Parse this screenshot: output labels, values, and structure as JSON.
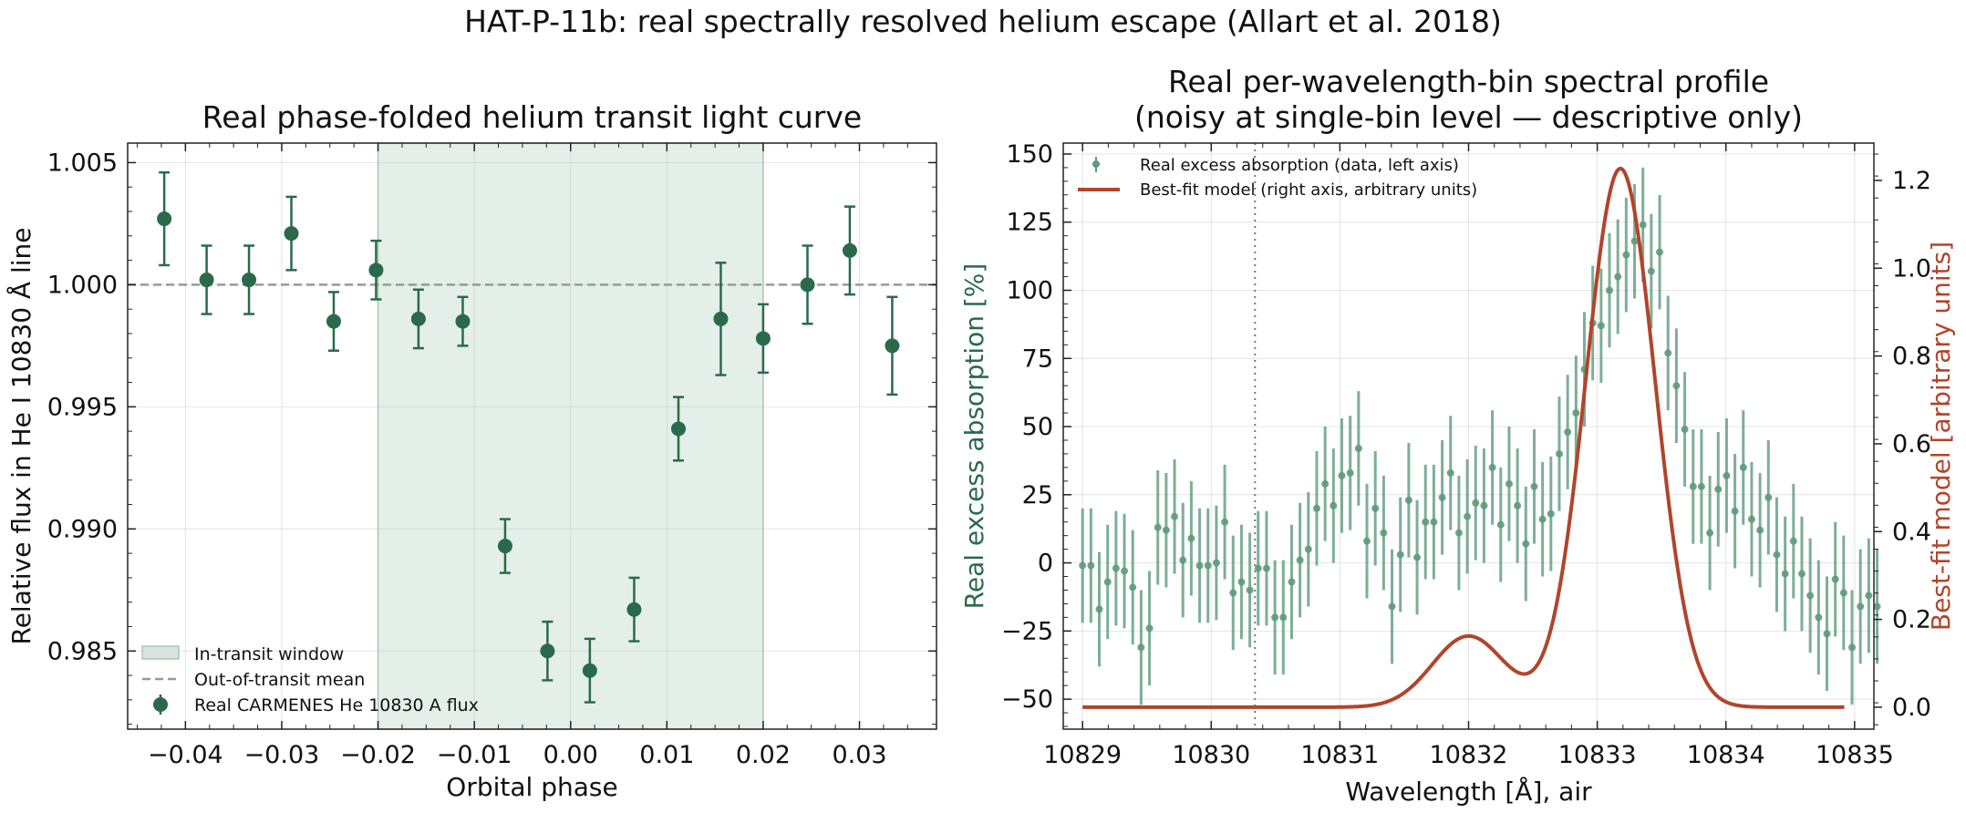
{
  "figure": {
    "suptitle": "HAT-P-11b: real spectrally resolved helium escape (Allart et al. 2018)"
  },
  "chart_data": [
    {
      "type": "scatter",
      "title": "Real phase-folded helium transit light curve",
      "xlabel": "Orbital phase",
      "ylabel": "Relative flux in He I 10830 Å line",
      "xlim": [
        -0.046,
        0.038
      ],
      "ylim": [
        0.9818,
        1.0058
      ],
      "xticks": [
        -0.04,
        -0.03,
        -0.02,
        -0.01,
        0.0,
        0.01,
        0.02,
        0.03
      ],
      "xtick_labels": [
        "−0.04",
        "−0.03",
        "−0.02",
        "−0.01",
        "0.00",
        "0.01",
        "0.02",
        "0.03"
      ],
      "yticks": [
        0.985,
        0.99,
        0.995,
        1.0,
        1.005
      ],
      "ytick_labels": [
        "0.985",
        "0.990",
        "0.995",
        "1.000",
        "1.005"
      ],
      "grid": true,
      "legend_placement": "lower-left",
      "colors": {
        "data": "#2a6a4a",
        "mean": "#999999",
        "window": "#d6e6dd"
      },
      "in_transit_window": {
        "label": "In-transit window",
        "x0": -0.02,
        "x1": 0.02
      },
      "reference_line": {
        "label": "Out-of-transit mean",
        "y": 1.0
      },
      "series": [
        {
          "name": "Real CARMENES He 10830 A flux",
          "x": [
            -0.0422,
            -0.0378,
            -0.0334,
            -0.029,
            -0.0246,
            -0.0202,
            -0.0158,
            -0.0112,
            -0.0068,
            -0.0024,
            0.002,
            0.0066,
            0.0112,
            0.0156,
            0.02,
            0.0246,
            0.029,
            0.0334
          ],
          "y": [
            1.0027,
            1.0002,
            1.0002,
            1.0021,
            0.9985,
            1.0006,
            0.9986,
            0.9985,
            0.9893,
            0.985,
            0.9842,
            0.9867,
            0.9941,
            0.9986,
            0.9978,
            1.0,
            1.0014,
            0.9975
          ],
          "yerr": [
            0.0019,
            0.0014,
            0.0014,
            0.0015,
            0.0012,
            0.0012,
            0.0012,
            0.001,
            0.0011,
            0.0012,
            0.0013,
            0.0013,
            0.0013,
            0.0023,
            0.0014,
            0.0016,
            0.0018,
            0.002
          ]
        }
      ]
    },
    {
      "type": "scatter",
      "title": "Real per-wavelength-bin spectral profile",
      "subtitle": "(noisy at single-bin level — descriptive only)",
      "xlabel": "Wavelength [Å], air",
      "ylabel": "Real excess absorption [%]",
      "ylabel_right": "Best-fit model [arbitrary units]",
      "xlim": [
        10828.85,
        10835.15
      ],
      "ylim": [
        -61,
        154
      ],
      "ylim_right": [
        -0.05,
        1.285
      ],
      "xticks": [
        10829,
        10830,
        10831,
        10832,
        10833,
        10834,
        10835
      ],
      "yticks": [
        -50,
        -25,
        0,
        25,
        50,
        75,
        100,
        125,
        150
      ],
      "ytick_labels": [
        "−50",
        "−25",
        "0",
        "25",
        "50",
        "75",
        "100",
        "125",
        "150"
      ],
      "yticks_right": [
        0.0,
        0.2,
        0.4,
        0.6,
        0.8,
        1.0,
        1.2
      ],
      "ytick_labels_right": [
        "0.0",
        "0.2",
        "0.4",
        "0.6",
        "0.8",
        "1.0",
        "1.2"
      ],
      "grid": true,
      "legend_placement": "upper-left",
      "colors": {
        "data": "#5e9a7c",
        "model": "#b0452a",
        "left_axis": "#2a6a4a",
        "right_axis": "#b0452a"
      },
      "vline_x": 10830.34,
      "series": [
        {
          "name": "Real excess absorption (data, left axis)",
          "x_start": 10829.0,
          "x_step": 0.065,
          "y": [
            -1,
            -1,
            -17,
            -7,
            -2,
            -3,
            -9,
            -31,
            -24,
            13,
            12,
            17,
            1,
            9,
            -1,
            -1,
            0,
            15,
            -11,
            -7,
            -10,
            -2,
            -2,
            -20,
            -20,
            -7,
            1,
            5,
            20,
            29,
            21,
            32,
            33,
            42,
            8,
            20,
            11,
            -16,
            3,
            23,
            2,
            15,
            15,
            24,
            33,
            11,
            17,
            22,
            21,
            35,
            14,
            29,
            21,
            7,
            28,
            16,
            18,
            40,
            48,
            55,
            71,
            88,
            87,
            100,
            105,
            113,
            118,
            124,
            107,
            114,
            77,
            65,
            49,
            28,
            28,
            11,
            27,
            32,
            19,
            35,
            16,
            12,
            24,
            3,
            -4,
            8,
            -4,
            -12,
            -20,
            -26,
            -6,
            -11,
            -31,
            -16,
            -12,
            -16
          ],
          "yerr_half": 21
        },
        {
          "name": "Best-fit model (right axis, arbitrary units)",
          "axis": "right",
          "components": [
            {
              "center": 10833.18,
              "amplitude": 1.227,
              "sigma": 0.27
            },
            {
              "center": 10832.0,
              "amplitude": 0.162,
              "sigma": 0.28
            }
          ]
        }
      ]
    }
  ]
}
